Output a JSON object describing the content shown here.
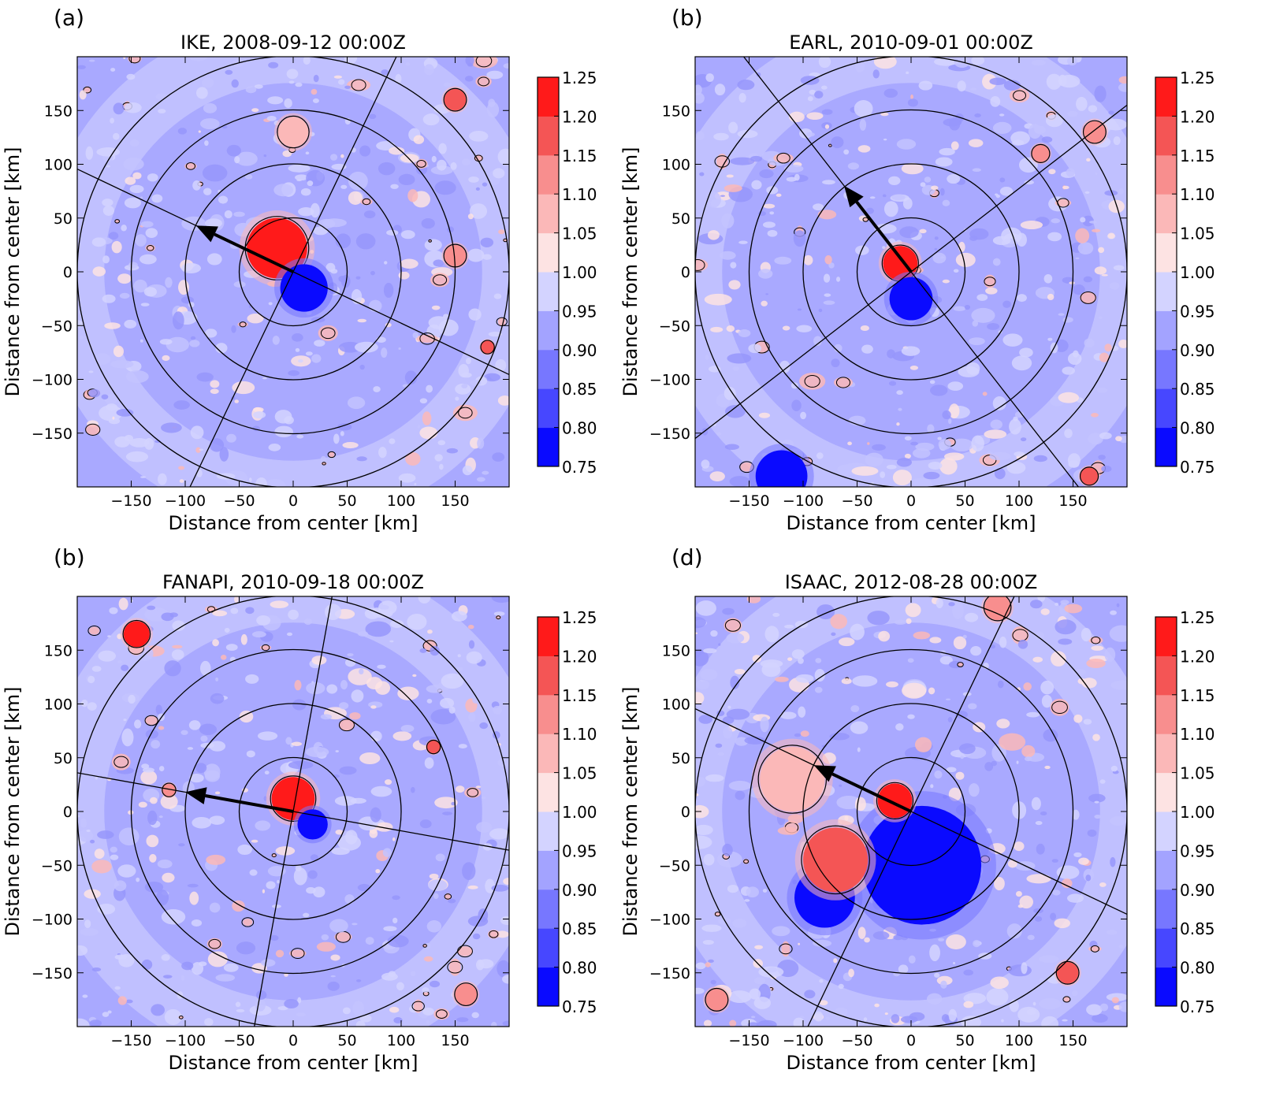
{
  "figure": {
    "colorbar": {
      "levels": [
        0.75,
        0.8,
        0.85,
        0.9,
        0.95,
        1.0,
        1.05,
        1.1,
        1.15,
        1.2,
        1.25
      ],
      "tick_labels": [
        "0.75",
        "0.80",
        "0.85",
        "0.90",
        "0.95",
        "1.00",
        "1.05",
        "1.10",
        "1.15",
        "1.20",
        "1.25"
      ],
      "colors": [
        "#0a0aff",
        "#4747ff",
        "#7777ff",
        "#a3a3ff",
        "#d3d3ff",
        "#fde3e3",
        "#fbb8b8",
        "#f88e8e",
        "#f45555",
        "#ff1a1a"
      ]
    },
    "field_colors": {
      "background": "#a9a9ff",
      "light": "#d3d3ff",
      "pale_red": "#fbb8b8",
      "red": "#ff1a1a",
      "blue": "#0a0aff"
    }
  },
  "chart_data": [
    {
      "type": "heatmap",
      "panel_label": "(a)",
      "title": "IKE, 2008-09-12 00:00Z",
      "xlabel": "Distance from center [km]",
      "ylabel": "Distance from center [km]",
      "xlim": [
        -200,
        200
      ],
      "ylim": [
        -200,
        200
      ],
      "xticks": [
        -150,
        -100,
        -50,
        0,
        50,
        100,
        150
      ],
      "yticks": [
        -150,
        -100,
        -50,
        0,
        50,
        100,
        150
      ],
      "xtick_labels": [
        "−150",
        "−100",
        "−50",
        "0",
        "50",
        "100",
        "150"
      ],
      "ytick_labels": [
        "−150",
        "−100",
        "−50",
        "0",
        "50",
        "100",
        "150"
      ],
      "range_rings_km": [
        50,
        100,
        150,
        200
      ],
      "shear_arrow": {
        "x": -90,
        "y": 43
      },
      "features": [
        {
          "x": -15,
          "y": 22,
          "r": 28,
          "value": 1.25
        },
        {
          "x": 10,
          "y": -15,
          "r": 22,
          "value": 0.75
        },
        {
          "x": 150,
          "y": 160,
          "r": 10,
          "value": 1.15
        },
        {
          "x": 150,
          "y": 15,
          "r": 10,
          "value": 1.1
        },
        {
          "x": 0,
          "y": 130,
          "r": 14,
          "value": 1.05
        },
        {
          "x": 180,
          "y": -70,
          "r": 6,
          "value": 1.15
        }
      ]
    },
    {
      "type": "heatmap",
      "panel_label": "(b)",
      "title": "EARL, 2010-09-01 00:00Z",
      "xlabel": "Distance from center [km]",
      "ylabel": "Distance from center [km]",
      "xlim": [
        -200,
        200
      ],
      "ylim": [
        -200,
        200
      ],
      "xticks": [
        -150,
        -100,
        -50,
        0,
        50,
        100,
        150
      ],
      "yticks": [
        -150,
        -100,
        -50,
        0,
        50,
        100,
        150
      ],
      "xtick_labels": [
        "−150",
        "−100",
        "−50",
        "0",
        "50",
        "100",
        "150"
      ],
      "ytick_labels": [
        "−150",
        "−100",
        "−50",
        "0",
        "50",
        "100",
        "150"
      ],
      "range_rings_km": [
        50,
        100,
        150,
        200
      ],
      "shear_arrow": {
        "x": -62,
        "y": 80
      },
      "features": [
        {
          "x": -10,
          "y": 8,
          "r": 16,
          "value": 1.25
        },
        {
          "x": 0,
          "y": -25,
          "r": 20,
          "value": 0.75
        },
        {
          "x": -120,
          "y": -190,
          "r": 24,
          "value": 0.75
        },
        {
          "x": 170,
          "y": 130,
          "r": 10,
          "value": 1.1
        },
        {
          "x": 165,
          "y": -190,
          "r": 8,
          "value": 1.15
        },
        {
          "x": 120,
          "y": 110,
          "r": 8,
          "value": 1.1
        }
      ]
    },
    {
      "type": "heatmap",
      "panel_label": "(b)",
      "title": "FANAPI, 2010-09-18 00:00Z",
      "xlabel": "Distance from center [km]",
      "ylabel": "Distance from center [km]",
      "xlim": [
        -200,
        200
      ],
      "ylim": [
        -200,
        200
      ],
      "xticks": [
        -150,
        -100,
        -50,
        0,
        50,
        100,
        150
      ],
      "yticks": [
        -150,
        -100,
        -50,
        0,
        50,
        100,
        150
      ],
      "xtick_labels": [
        "−150",
        "−100",
        "−50",
        "0",
        "50",
        "100",
        "150"
      ],
      "ytick_labels": [
        "−150",
        "−100",
        "−50",
        "0",
        "50",
        "100",
        "150"
      ],
      "range_rings_km": [
        50,
        100,
        150,
        200
      ],
      "shear_arrow": {
        "x": -100,
        "y": 18
      },
      "features": [
        {
          "x": 0,
          "y": 12,
          "r": 20,
          "value": 1.25
        },
        {
          "x": 18,
          "y": -12,
          "r": 14,
          "value": 0.75
        },
        {
          "x": -145,
          "y": 165,
          "r": 12,
          "value": 1.25
        },
        {
          "x": 160,
          "y": -170,
          "r": 10,
          "value": 1.1
        },
        {
          "x": 130,
          "y": 60,
          "r": 6,
          "value": 1.15
        },
        {
          "x": -115,
          "y": 20,
          "r": 6,
          "value": 1.1
        }
      ]
    },
    {
      "type": "heatmap",
      "panel_label": "(d)",
      "title": "ISAAC, 2012-08-28 00:00Z",
      "xlabel": "Distance from center [km]",
      "ylabel": "Distance from center [km]",
      "xlim": [
        -200,
        200
      ],
      "ylim": [
        -200,
        200
      ],
      "xticks": [
        -150,
        -100,
        -50,
        0,
        50,
        100,
        150
      ],
      "yticks": [
        -150,
        -100,
        -50,
        0,
        50,
        100,
        150
      ],
      "xtick_labels": [
        "−150",
        "−100",
        "−50",
        "0",
        "50",
        "100",
        "150"
      ],
      "ytick_labels": [
        "−150",
        "−100",
        "−50",
        "0",
        "50",
        "100",
        "150"
      ],
      "range_rings_km": [
        50,
        100,
        150,
        200
      ],
      "shear_arrow": {
        "x": -90,
        "y": 43
      },
      "features": [
        {
          "x": 10,
          "y": -50,
          "r": 55,
          "value": 0.75
        },
        {
          "x": -80,
          "y": -80,
          "r": 28,
          "value": 0.75
        },
        {
          "x": -70,
          "y": -45,
          "r": 30,
          "value": 1.15
        },
        {
          "x": -110,
          "y": 30,
          "r": 30,
          "value": 1.05
        },
        {
          "x": -15,
          "y": 10,
          "r": 16,
          "value": 1.25
        },
        {
          "x": -180,
          "y": -175,
          "r": 10,
          "value": 1.1
        },
        {
          "x": 145,
          "y": -150,
          "r": 10,
          "value": 1.15
        },
        {
          "x": 80,
          "y": 190,
          "r": 12,
          "value": 1.1
        }
      ]
    }
  ]
}
